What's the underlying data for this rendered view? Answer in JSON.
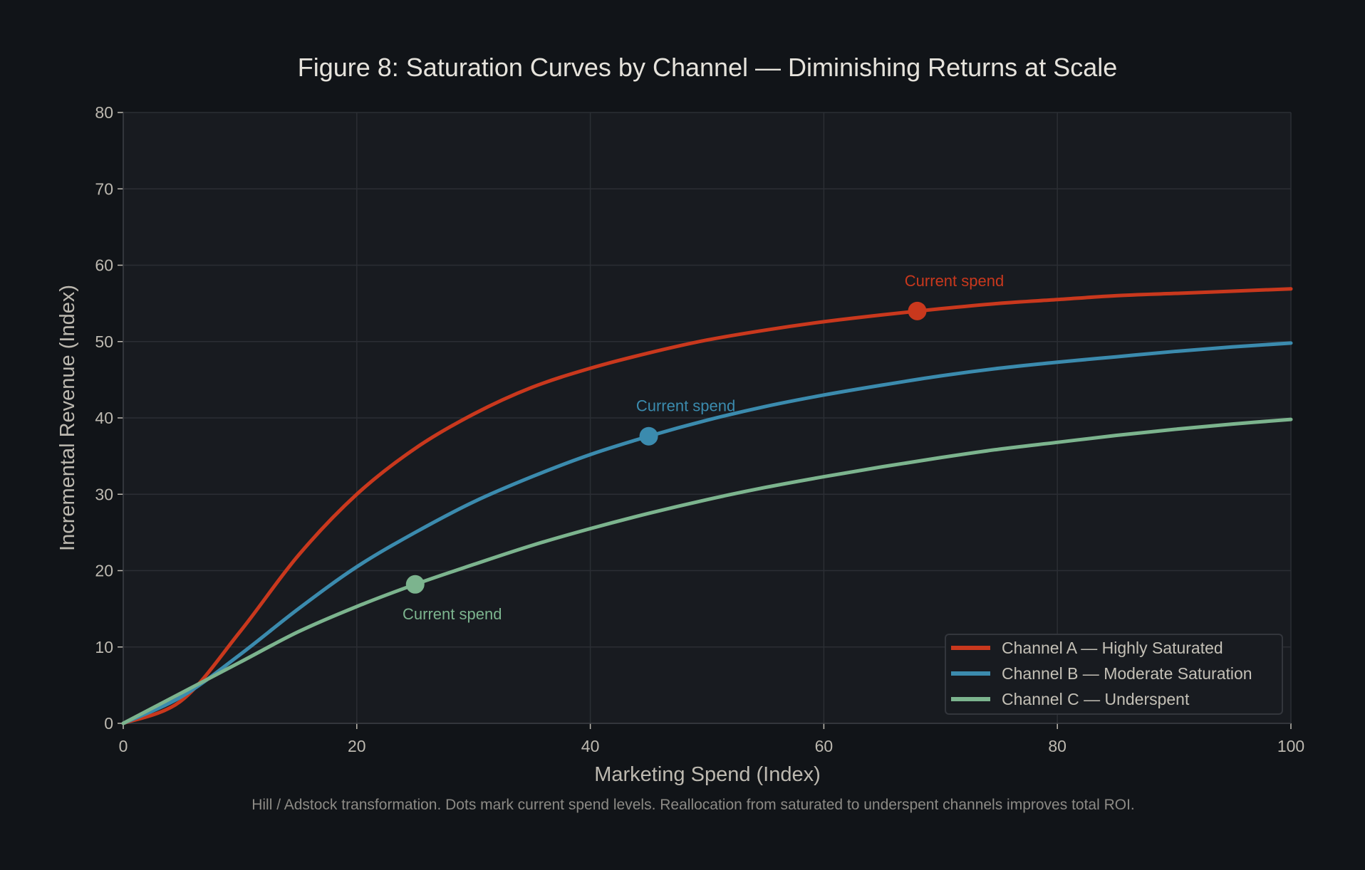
{
  "chart_data": {
    "type": "line",
    "title": "Figure 8: Saturation Curves by Channel — Diminishing Returns at Scale",
    "xlabel": "Marketing Spend (Index)",
    "ylabel": "Incremental Revenue (Index)",
    "caption": "Hill / Adstock transformation. Dots mark current spend levels. Reallocation from saturated to underspent channels improves total ROI.",
    "xlim": [
      0,
      100
    ],
    "ylim": [
      0,
      80
    ],
    "xticks": [
      0,
      20,
      40,
      60,
      80,
      100
    ],
    "yticks": [
      0,
      10,
      20,
      30,
      40,
      50,
      60,
      70,
      80
    ],
    "grid": true,
    "legend_placement": "lower-right",
    "x": [
      0,
      5,
      10,
      15,
      20,
      25,
      30,
      35,
      40,
      45,
      50,
      55,
      60,
      65,
      70,
      75,
      80,
      85,
      90,
      95,
      100
    ],
    "series": [
      {
        "name": "Channel A — Highly Saturated",
        "color": "#c9381d",
        "values": [
          0,
          3,
          12,
          22,
          30,
          36,
          40.5,
          44,
          46.5,
          48.5,
          50.2,
          51.5,
          52.6,
          53.5,
          54.3,
          55,
          55.5,
          56,
          56.3,
          56.6,
          56.9
        ],
        "current_spend": {
          "x": 68,
          "y": 54,
          "label": "Current spend",
          "label_position": "above"
        }
      },
      {
        "name": "Channel B — Moderate Saturation",
        "color": "#3b8bae",
        "values": [
          0,
          3.5,
          9,
          15,
          20.5,
          25,
          29,
          32.3,
          35.2,
          37.6,
          39.7,
          41.5,
          43,
          44.3,
          45.5,
          46.5,
          47.3,
          48,
          48.7,
          49.3,
          49.8
        ],
        "current_spend": {
          "x": 45,
          "y": 37.6,
          "label": "Current spend",
          "label_position": "above"
        }
      },
      {
        "name": "Channel C — Underspent",
        "color": "#7cb48e",
        "values": [
          0,
          4,
          8,
          12,
          15.3,
          18.2,
          20.8,
          23.3,
          25.5,
          27.5,
          29.3,
          30.9,
          32.3,
          33.6,
          34.8,
          35.9,
          36.8,
          37.7,
          38.5,
          39.2,
          39.8
        ],
        "current_spend": {
          "x": 25,
          "y": 18.2,
          "label": "Current spend",
          "label_position": "below"
        }
      }
    ]
  }
}
